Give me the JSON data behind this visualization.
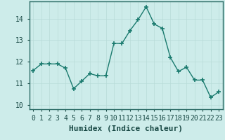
{
  "x": [
    0,
    1,
    2,
    3,
    4,
    5,
    6,
    7,
    8,
    9,
    10,
    11,
    12,
    13,
    14,
    15,
    16,
    17,
    18,
    19,
    20,
    21,
    22,
    23
  ],
  "y": [
    11.6,
    11.9,
    11.9,
    11.9,
    11.7,
    10.75,
    11.1,
    11.45,
    11.35,
    11.35,
    12.85,
    12.85,
    13.45,
    13.95,
    14.55,
    13.75,
    13.55,
    12.2,
    11.55,
    11.75,
    11.15,
    11.15,
    10.35,
    10.6
  ],
  "line_color": "#1a7a6e",
  "marker": "+",
  "markersize": 4,
  "markeredgewidth": 1.2,
  "linewidth": 1.0,
  "xlabel": "Humidex (Indice chaleur)",
  "xlabel_fontsize": 8,
  "xtick_labels": [
    "0",
    "1",
    "2",
    "3",
    "4",
    "5",
    "6",
    "7",
    "8",
    "9",
    "10",
    "11",
    "12",
    "13",
    "14",
    "15",
    "16",
    "17",
    "18",
    "19",
    "20",
    "21",
    "22",
    "23"
  ],
  "yticks": [
    10,
    11,
    12,
    13,
    14
  ],
  "ylim": [
    9.8,
    14.8
  ],
  "xlim": [
    -0.5,
    23.5
  ],
  "bg_color": "#cdecea",
  "grid_color": "#b8dbd8",
  "spine_color": "#2a6b65",
  "tick_color": "#1a4a46",
  "tick_fontsize": 7,
  "xlabel_fontweight": "bold"
}
